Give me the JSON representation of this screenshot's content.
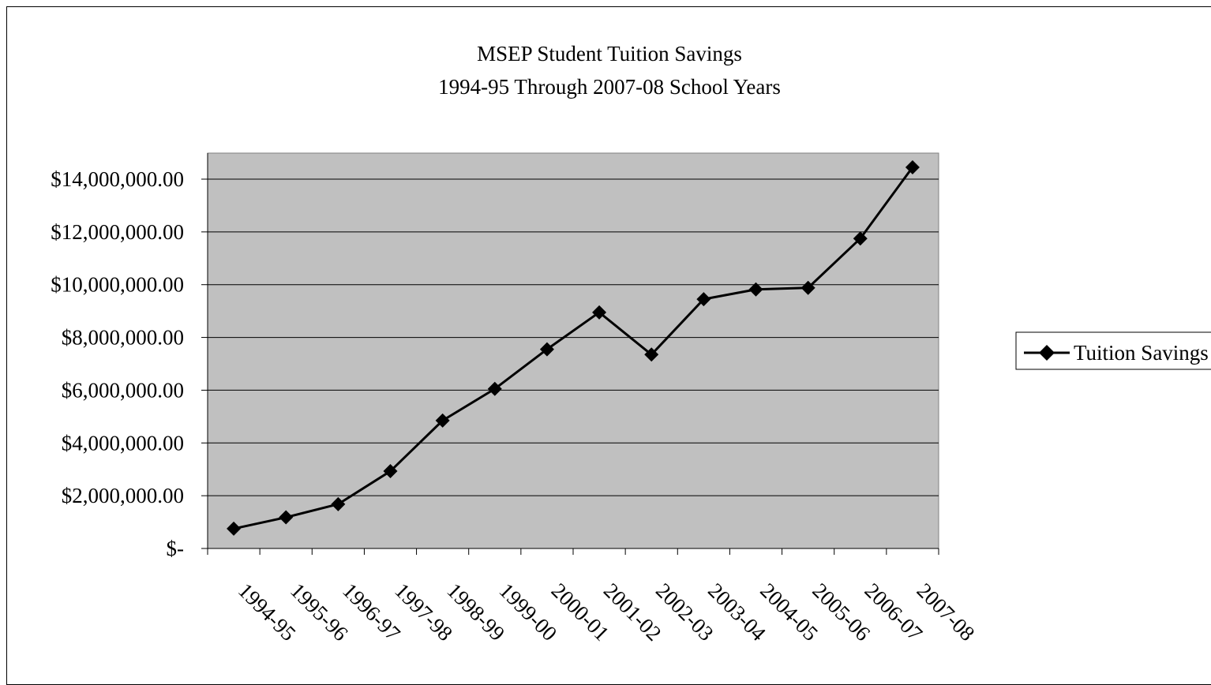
{
  "chart_data": {
    "type": "line",
    "title": "MSEP Student Tuition Savings",
    "subtitle": "1994-95 Through 2007-08 School Years",
    "xlabel": "",
    "ylabel": "",
    "categories": [
      "1994-95",
      "1995-96",
      "1996-97",
      "1997-98",
      "1998-99",
      "1999-00",
      "2000-01",
      "2001-02",
      "2002-03",
      "2003-04",
      "2004-05",
      "2005-06",
      "2006-07",
      "2007-08"
    ],
    "series": [
      {
        "name": "Tuition Savings",
        "values": [
          750000,
          1180000,
          1680000,
          2930000,
          4850000,
          6050000,
          7550000,
          8950000,
          7350000,
          9450000,
          9820000,
          9880000,
          11750000,
          14450000
        ],
        "color": "#000000",
        "marker": "diamond"
      }
    ],
    "ylim": [
      0,
      14000000
    ],
    "yticks": [
      0,
      2000000,
      4000000,
      6000000,
      8000000,
      10000000,
      12000000,
      14000000
    ],
    "ytick_labels": [
      "$-",
      "$2,000,000.00",
      "$4,000,000.00",
      "$6,000,000.00",
      "$8,000,000.00",
      "$10,000,000.00",
      "$12,000,000.00",
      "$14,000,000.00"
    ],
    "grid": true,
    "legend_position": "right",
    "plot_background": "#c0c0c0"
  }
}
